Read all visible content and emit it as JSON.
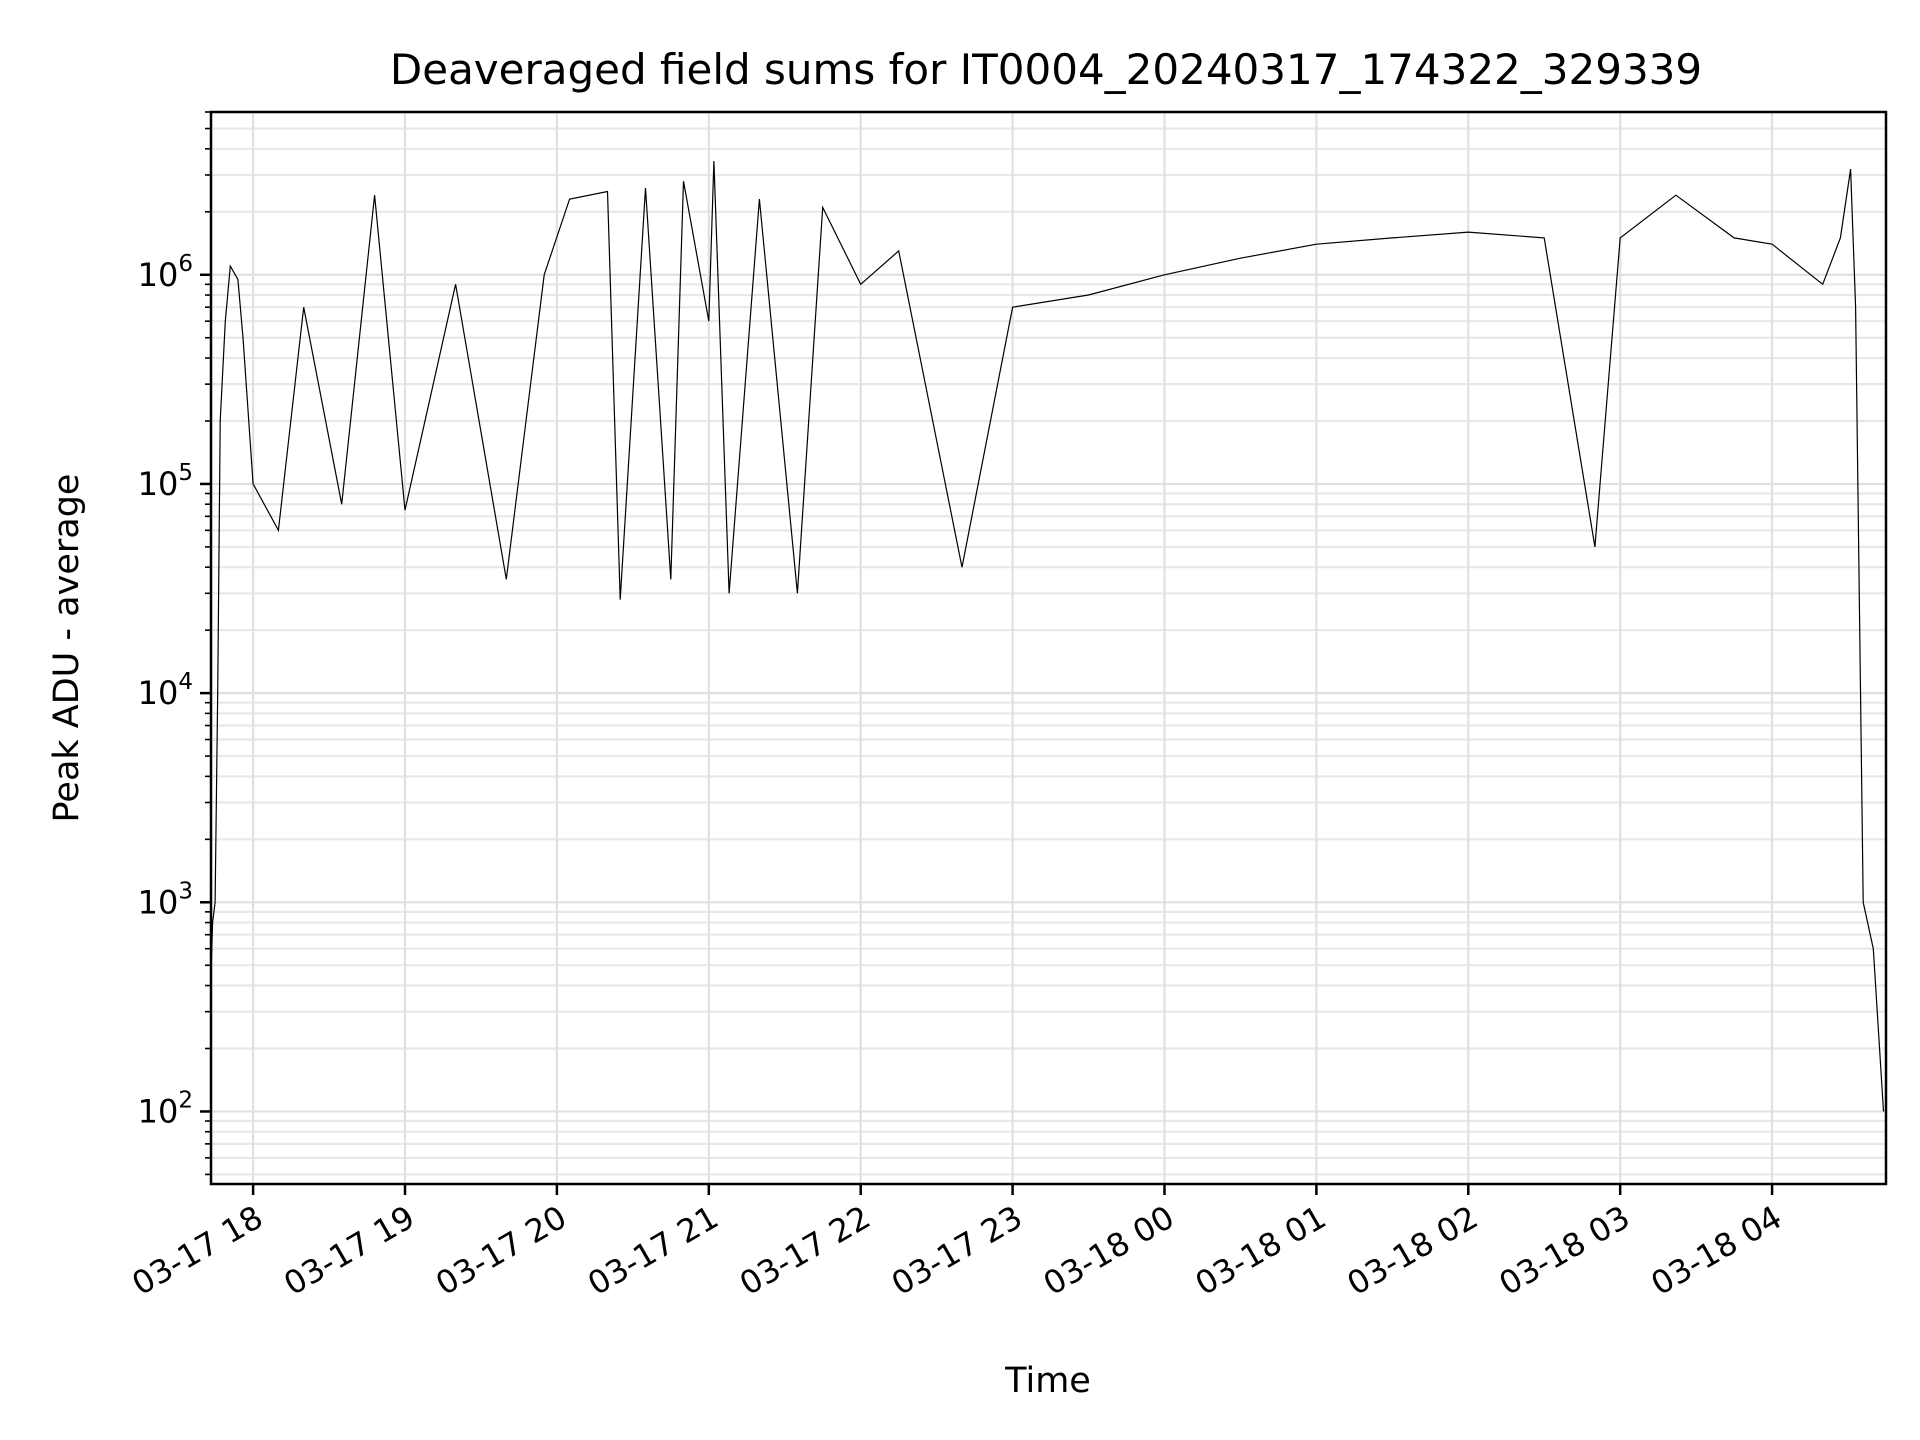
{
  "chart_data": {
    "type": "line",
    "title": "Deaveraged field sums for IT0004_20240317_174322_329339",
    "xlabel": "Time",
    "ylabel": "Peak ADU - average",
    "yscale": "log",
    "ylim": [
      45,
      6000000
    ],
    "xlim": [
      "2024-03-17 17:43:22",
      "2024-03-18 04:45:00"
    ],
    "x_ticks": [
      {
        "t": "2024-03-17 18:00",
        "label": "03-17 18"
      },
      {
        "t": "2024-03-17 19:00",
        "label": "03-17 19"
      },
      {
        "t": "2024-03-17 20:00",
        "label": "03-17 20"
      },
      {
        "t": "2024-03-17 21:00",
        "label": "03-17 21"
      },
      {
        "t": "2024-03-17 22:00",
        "label": "03-17 22"
      },
      {
        "t": "2024-03-17 23:00",
        "label": "03-17 23"
      },
      {
        "t": "2024-03-18 00:00",
        "label": "03-18 00"
      },
      {
        "t": "2024-03-18 01:00",
        "label": "03-18 01"
      },
      {
        "t": "2024-03-18 02:00",
        "label": "03-18 02"
      },
      {
        "t": "2024-03-18 03:00",
        "label": "03-18 03"
      },
      {
        "t": "2024-03-18 04:00",
        "label": "03-18 04"
      }
    ],
    "y_ticks": [
      {
        "value": 100,
        "base": "10",
        "exp": "2"
      },
      {
        "value": 1000,
        "base": "10",
        "exp": "3"
      },
      {
        "value": 10000,
        "base": "10",
        "exp": "4"
      },
      {
        "value": 100000,
        "base": "10",
        "exp": "5"
      },
      {
        "value": 1000000,
        "base": "10",
        "exp": "6"
      }
    ],
    "grid": true,
    "line_color": "#000000",
    "series": [
      {
        "points": [
          [
            "2024-03-17 17:43:22",
            450
          ],
          [
            "2024-03-17 17:44:00",
            800
          ],
          [
            "2024-03-17 17:45:00",
            1000
          ],
          [
            "2024-03-17 17:46:00",
            10000
          ],
          [
            "2024-03-17 17:47:00",
            200000
          ],
          [
            "2024-03-17 17:49:00",
            600000
          ],
          [
            "2024-03-17 17:51:00",
            1100000
          ],
          [
            "2024-03-17 17:54:00",
            950000
          ],
          [
            "2024-03-17 17:56:00",
            500000
          ],
          [
            "2024-03-17 18:00",
            100000
          ],
          [
            "2024-03-17 18:10",
            60000
          ],
          [
            "2024-03-17 18:20",
            700000
          ],
          [
            "2024-03-17 18:35",
            80000
          ],
          [
            "2024-03-17 18:48",
            2400000
          ],
          [
            "2024-03-17 19:00",
            75000
          ],
          [
            "2024-03-17 19:20",
            900000
          ],
          [
            "2024-03-17 19:40",
            35000
          ],
          [
            "2024-03-17 19:55",
            1000000
          ],
          [
            "2024-03-17 20:05",
            2300000
          ],
          [
            "2024-03-17 20:20",
            2500000
          ],
          [
            "2024-03-17 20:25",
            28000
          ],
          [
            "2024-03-17 20:35",
            2600000
          ],
          [
            "2024-03-17 20:45",
            35000
          ],
          [
            "2024-03-17 20:50",
            2800000
          ],
          [
            "2024-03-17 21:00",
            600000
          ],
          [
            "2024-03-17 21:02",
            3500000
          ],
          [
            "2024-03-17 21:08",
            30000
          ],
          [
            "2024-03-17 21:20",
            2300000
          ],
          [
            "2024-03-17 21:35",
            30000
          ],
          [
            "2024-03-17 21:45",
            2100000
          ],
          [
            "2024-03-17 22:00",
            900000
          ],
          [
            "2024-03-17 22:15",
            1300000
          ],
          [
            "2024-03-17 22:40",
            40000
          ],
          [
            "2024-03-17 23:00",
            700000
          ],
          [
            "2024-03-17 23:30",
            800000
          ],
          [
            "2024-03-18 00:00",
            1000000
          ],
          [
            "2024-03-18 00:30",
            1200000
          ],
          [
            "2024-03-18 01:00",
            1400000
          ],
          [
            "2024-03-18 01:30",
            1500000
          ],
          [
            "2024-03-18 02:00",
            1600000
          ],
          [
            "2024-03-18 02:30",
            1500000
          ],
          [
            "2024-03-18 02:50",
            50000
          ],
          [
            "2024-03-18 03:00",
            1500000
          ],
          [
            "2024-03-18 03:22",
            2400000
          ],
          [
            "2024-03-18 03:45",
            1500000
          ],
          [
            "2024-03-18 04:00",
            1400000
          ],
          [
            "2024-03-18 04:20",
            900000
          ],
          [
            "2024-03-18 04:27",
            1500000
          ],
          [
            "2024-03-18 04:31",
            3200000
          ],
          [
            "2024-03-18 04:33",
            700000
          ],
          [
            "2024-03-18 04:36",
            1000
          ],
          [
            "2024-03-18 04:40",
            600
          ],
          [
            "2024-03-18 04:44",
            100
          ]
        ]
      }
    ]
  }
}
